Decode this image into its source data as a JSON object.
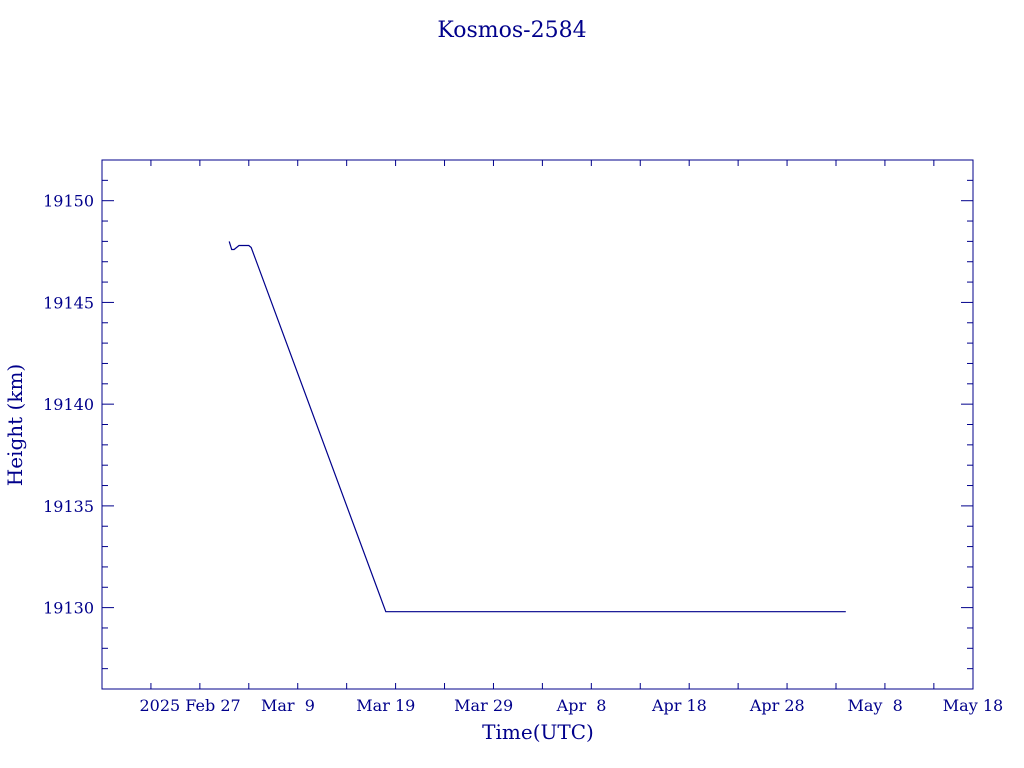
{
  "chart_data": {
    "type": "line",
    "title": "Kosmos-2584",
    "xlabel": "Time(UTC)",
    "ylabel": "Height (km)",
    "xlim": [
      "2025-02-18",
      "2025-05-18"
    ],
    "ylim": [
      19126,
      19152
    ],
    "x_ticks": [
      {
        "date": "2025-02-27",
        "label": "2025 Feb 27"
      },
      {
        "date": "2025-03-09",
        "label": "Mar  9"
      },
      {
        "date": "2025-03-19",
        "label": "Mar 19"
      },
      {
        "date": "2025-03-29",
        "label": "Mar 29"
      },
      {
        "date": "2025-04-08",
        "label": "Apr  8"
      },
      {
        "date": "2025-04-18",
        "label": "Apr 18"
      },
      {
        "date": "2025-04-28",
        "label": "Apr 28"
      },
      {
        "date": "2025-05-08",
        "label": "May  8"
      },
      {
        "date": "2025-05-18",
        "label": "May 18"
      }
    ],
    "y_ticks": [
      19130,
      19135,
      19140,
      19145,
      19150
    ],
    "colors": {
      "axis": "#00008b",
      "line": "#00008b"
    },
    "series": [
      {
        "x": [
          "2025-03-03",
          "2025-03-03T06:00",
          "2025-03-03T12:00",
          "2025-03-04",
          "2025-03-05",
          "2025-03-05T06:00",
          "2025-03-19",
          "2025-03-23",
          "2025-03-25",
          "2025-03-25T06:00",
          "2025-05-05"
        ],
        "y": [
          19148.0,
          19147.6,
          19147.6,
          19147.8,
          19147.8,
          19147.7,
          19129.8,
          19129.8,
          19129.8,
          19129.8,
          19129.8
        ]
      }
    ]
  }
}
